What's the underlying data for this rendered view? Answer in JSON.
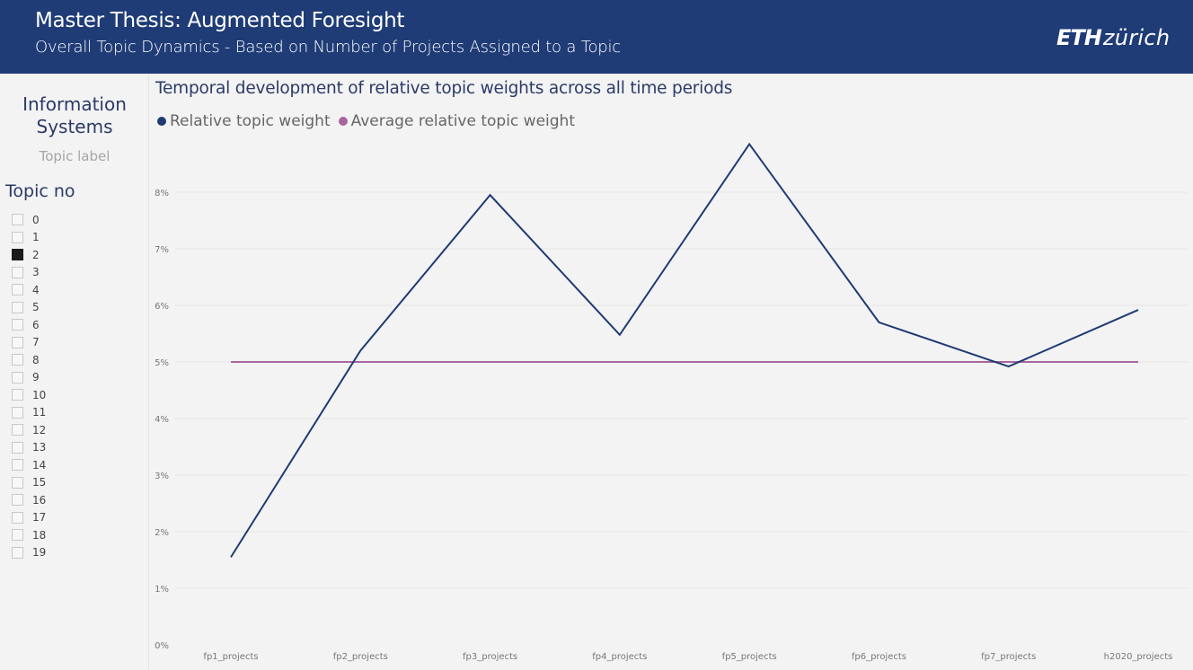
{
  "header": {
    "title": "Master Thesis: Augmented Foresight",
    "subtitle": "Overall Topic Dynamics - Based on Number of Projects Assigned to a Topic",
    "logo_bold": "ETH",
    "logo_light": "zürich"
  },
  "sidebar": {
    "topic_name": "Information Systems",
    "topic_caption": "Topic label",
    "slicer_title": "Topic no",
    "items": [
      {
        "label": "0",
        "checked": false
      },
      {
        "label": "1",
        "checked": false
      },
      {
        "label": "2",
        "checked": true
      },
      {
        "label": "3",
        "checked": false
      },
      {
        "label": "4",
        "checked": false
      },
      {
        "label": "5",
        "checked": false
      },
      {
        "label": "6",
        "checked": false
      },
      {
        "label": "7",
        "checked": false
      },
      {
        "label": "8",
        "checked": false
      },
      {
        "label": "9",
        "checked": false
      },
      {
        "label": "10",
        "checked": false
      },
      {
        "label": "11",
        "checked": false
      },
      {
        "label": "12",
        "checked": false
      },
      {
        "label": "13",
        "checked": false
      },
      {
        "label": "14",
        "checked": false
      },
      {
        "label": "15",
        "checked": false
      },
      {
        "label": "16",
        "checked": false
      },
      {
        "label": "17",
        "checked": false
      },
      {
        "label": "18",
        "checked": false
      },
      {
        "label": "19",
        "checked": false
      }
    ]
  },
  "chart_data": {
    "type": "line",
    "title": "Temporal development of relative topic weights across all time periods",
    "xlabel": "",
    "ylabel": "",
    "categories": [
      "fp1_projects",
      "fp2_projects",
      "fp3_projects",
      "fp4_projects",
      "fp5_projects",
      "fp6_projects",
      "fp7_projects",
      "h2020_projects"
    ],
    "series": [
      {
        "name": "Relative topic weight",
        "color": "#1f3a73",
        "values": [
          1.55,
          5.2,
          7.95,
          5.48,
          8.85,
          5.7,
          4.92,
          5.92
        ]
      },
      {
        "name": "Average relative topic weight",
        "color": "#a8669f",
        "values": [
          5.0,
          5.0,
          5.0,
          5.0,
          5.0,
          5.0,
          5.0,
          5.0
        ]
      }
    ],
    "yticks": [
      "0%",
      "1%",
      "2%",
      "3%",
      "4%",
      "5%",
      "6%",
      "7%",
      "8%"
    ],
    "ylim": [
      0,
      8
    ],
    "grid": true,
    "legend_position": "top-left"
  }
}
